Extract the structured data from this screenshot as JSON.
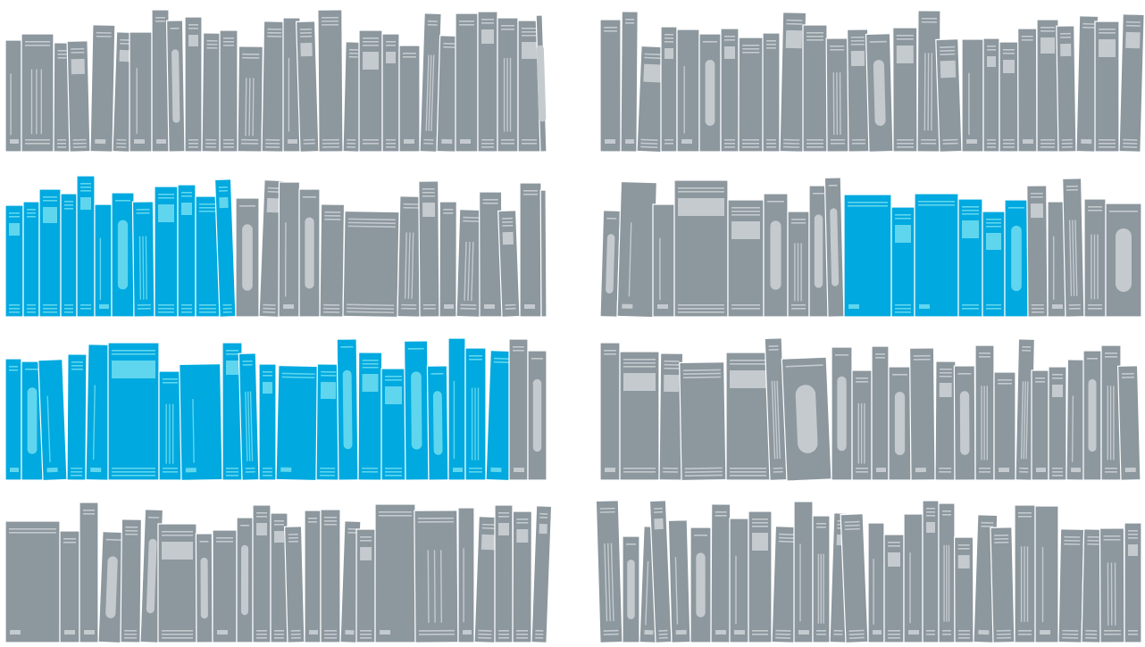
{
  "colors": {
    "background": "#ffffff",
    "book_gray": "#8c979e",
    "book_gray_detail": "#c4cace",
    "book_blue": "#00a9e0",
    "book_blue_detail": "#5fd6ee",
    "book_edge": "#ffffff"
  },
  "panels": [
    {
      "side": "left",
      "rows": [
        {
          "highlight": "none"
        },
        {
          "highlight": "first_group"
        },
        {
          "highlight": "all_but_last_two"
        },
        {
          "highlight": "none"
        }
      ]
    },
    {
      "side": "right",
      "rows": [
        {
          "highlight": "none"
        },
        {
          "highlight": "middle_block"
        },
        {
          "highlight": "none"
        },
        {
          "highlight": "none"
        }
      ]
    }
  ]
}
